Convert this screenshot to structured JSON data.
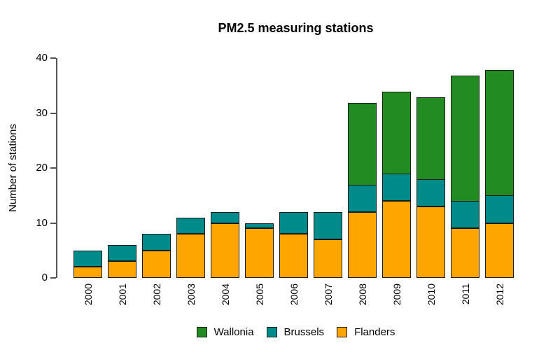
{
  "chart_data": {
    "type": "bar",
    "stacked": true,
    "title": "PM2.5 measuring stations",
    "xlabel": "",
    "ylabel": "Number of stations",
    "ylim": [
      0,
      40
    ],
    "yticks": [
      0,
      10,
      20,
      30,
      40
    ],
    "grid": false,
    "legend_position": "bottom",
    "categories": [
      "2000",
      "2001",
      "2002",
      "2003",
      "2004",
      "2005",
      "2006",
      "2007",
      "2008",
      "2009",
      "2010",
      "2011",
      "2012"
    ],
    "series": [
      {
        "name": "Wallonia",
        "color": "#228B22",
        "values": [
          0,
          0,
          0,
          0,
          0,
          0,
          0,
          0,
          15,
          15,
          15,
          23,
          23
        ]
      },
      {
        "name": "Brussels",
        "color": "#008B8B",
        "values": [
          3,
          3,
          3,
          3,
          2,
          1,
          4,
          5,
          5,
          5,
          5,
          5,
          5
        ]
      },
      {
        "name": "Flanders",
        "color": "#FFA500",
        "values": [
          2,
          3,
          5,
          8,
          10,
          9,
          8,
          7,
          12,
          14,
          13,
          9,
          10
        ]
      }
    ],
    "stack_order_bottom_to_top": [
      "Flanders",
      "Brussels",
      "Wallonia"
    ],
    "totals": [
      5,
      6,
      8,
      11,
      12,
      10,
      12,
      12,
      32,
      34,
      33,
      37,
      38
    ]
  }
}
